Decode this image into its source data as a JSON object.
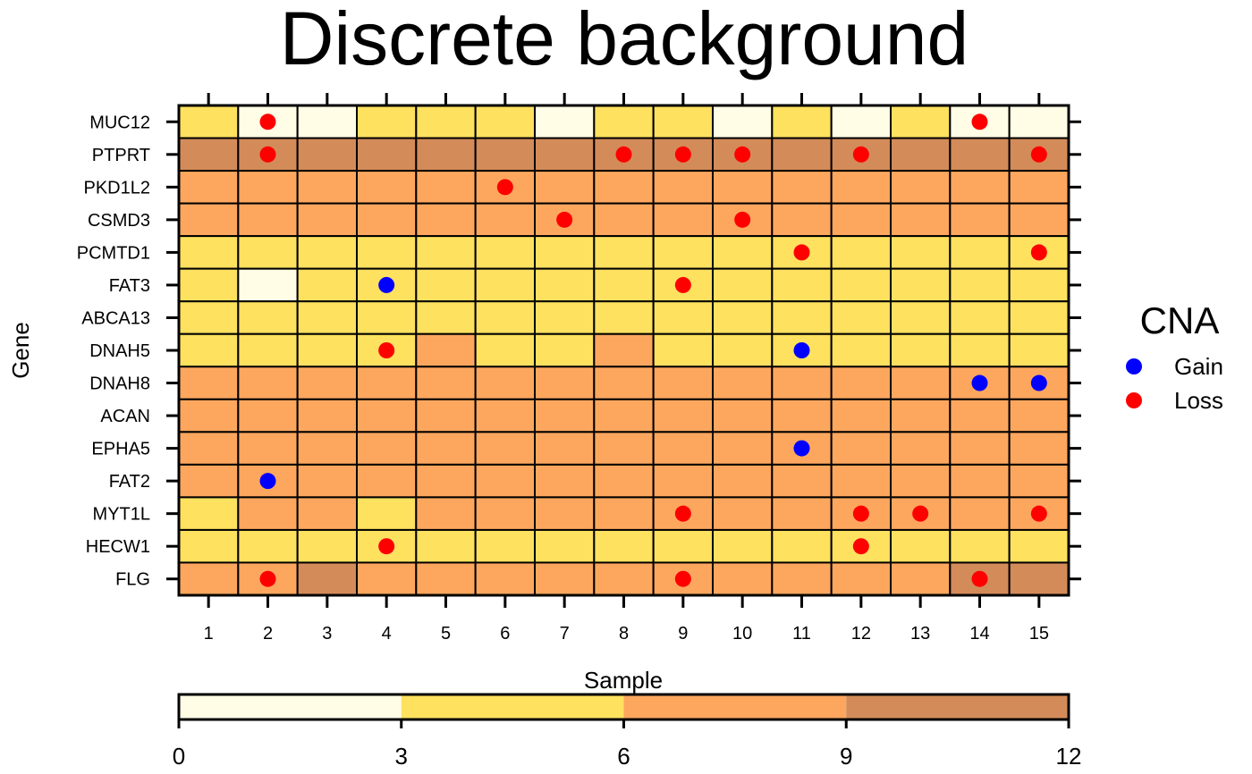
{
  "chart_data": {
    "type": "heatmap",
    "title": "Discrete background",
    "xlabel": "Sample",
    "ylabel": "Gene",
    "x": [
      1,
      2,
      3,
      4,
      5,
      6,
      7,
      8,
      9,
      10,
      11,
      12,
      13,
      14,
      15
    ],
    "genes": [
      "MUC12",
      "PTPRT",
      "PKD1L2",
      "CSMD3",
      "PCMTD1",
      "FAT3",
      "ABCA13",
      "DNAH5",
      "DNAH8",
      "ACAN",
      "EPHA5",
      "FAT2",
      "MYT1L",
      "HECW1",
      "FLG"
    ],
    "level_matrix": [
      [
        1,
        0,
        0,
        1,
        1,
        1,
        0,
        1,
        1,
        0,
        1,
        0,
        1,
        0,
        0
      ],
      [
        3,
        3,
        3,
        3,
        3,
        3,
        3,
        3,
        3,
        3,
        3,
        3,
        3,
        3,
        3
      ],
      [
        2,
        2,
        2,
        2,
        2,
        2,
        2,
        2,
        2,
        2,
        2,
        2,
        2,
        2,
        2
      ],
      [
        2,
        2,
        2,
        2,
        2,
        2,
        2,
        2,
        2,
        2,
        2,
        2,
        2,
        2,
        2
      ],
      [
        1,
        1,
        1,
        1,
        1,
        1,
        1,
        1,
        1,
        1,
        1,
        1,
        1,
        1,
        1
      ],
      [
        1,
        0,
        1,
        1,
        1,
        1,
        1,
        1,
        1,
        1,
        1,
        1,
        1,
        1,
        1
      ],
      [
        1,
        1,
        1,
        1,
        1,
        1,
        1,
        1,
        1,
        1,
        1,
        1,
        1,
        1,
        1
      ],
      [
        1,
        1,
        1,
        1,
        2,
        1,
        1,
        2,
        1,
        1,
        1,
        1,
        1,
        1,
        1
      ],
      [
        2,
        2,
        2,
        2,
        2,
        2,
        2,
        2,
        2,
        2,
        2,
        2,
        2,
        2,
        2
      ],
      [
        2,
        2,
        2,
        2,
        2,
        2,
        2,
        2,
        2,
        2,
        2,
        2,
        2,
        2,
        2
      ],
      [
        2,
        2,
        2,
        2,
        2,
        2,
        2,
        2,
        2,
        2,
        2,
        2,
        2,
        2,
        2
      ],
      [
        2,
        2,
        2,
        2,
        2,
        2,
        2,
        2,
        2,
        2,
        2,
        2,
        2,
        2,
        2
      ],
      [
        1,
        2,
        2,
        1,
        2,
        2,
        2,
        2,
        2,
        2,
        2,
        2,
        2,
        2,
        2
      ],
      [
        1,
        1,
        1,
        1,
        1,
        1,
        1,
        1,
        1,
        1,
        1,
        1,
        1,
        1,
        1
      ],
      [
        2,
        2,
        3,
        2,
        2,
        2,
        2,
        2,
        2,
        2,
        2,
        2,
        2,
        3,
        3
      ]
    ],
    "colorbar": {
      "breaks": [
        0,
        3,
        6,
        9,
        12
      ],
      "colors": [
        "#FFFDE6",
        "#FDE15F",
        "#FDA75E",
        "#D38B59"
      ]
    },
    "legend": {
      "title": "CNA",
      "placement": "right",
      "items": [
        {
          "label": "Gain",
          "color": "#0000FF"
        },
        {
          "label": "Loss",
          "color": "#FF0000"
        }
      ]
    },
    "points": [
      {
        "gene": "MUC12",
        "sample": 2,
        "type": "Loss"
      },
      {
        "gene": "MUC12",
        "sample": 14,
        "type": "Loss"
      },
      {
        "gene": "PTPRT",
        "sample": 2,
        "type": "Loss"
      },
      {
        "gene": "PTPRT",
        "sample": 8,
        "type": "Loss"
      },
      {
        "gene": "PTPRT",
        "sample": 9,
        "type": "Loss"
      },
      {
        "gene": "PTPRT",
        "sample": 10,
        "type": "Loss"
      },
      {
        "gene": "PTPRT",
        "sample": 12,
        "type": "Loss"
      },
      {
        "gene": "PTPRT",
        "sample": 15,
        "type": "Loss"
      },
      {
        "gene": "PKD1L2",
        "sample": 6,
        "type": "Loss"
      },
      {
        "gene": "CSMD3",
        "sample": 7,
        "type": "Loss"
      },
      {
        "gene": "CSMD3",
        "sample": 10,
        "type": "Loss"
      },
      {
        "gene": "PCMTD1",
        "sample": 11,
        "type": "Loss"
      },
      {
        "gene": "PCMTD1",
        "sample": 15,
        "type": "Loss"
      },
      {
        "gene": "FAT3",
        "sample": 4,
        "type": "Gain"
      },
      {
        "gene": "FAT3",
        "sample": 9,
        "type": "Loss"
      },
      {
        "gene": "DNAH5",
        "sample": 4,
        "type": "Loss"
      },
      {
        "gene": "DNAH5",
        "sample": 11,
        "type": "Gain"
      },
      {
        "gene": "DNAH8",
        "sample": 14,
        "type": "Gain"
      },
      {
        "gene": "DNAH8",
        "sample": 15,
        "type": "Gain"
      },
      {
        "gene": "EPHA5",
        "sample": 11,
        "type": "Gain"
      },
      {
        "gene": "FAT2",
        "sample": 2,
        "type": "Gain"
      },
      {
        "gene": "MYT1L",
        "sample": 9,
        "type": "Loss"
      },
      {
        "gene": "MYT1L",
        "sample": 12,
        "type": "Loss"
      },
      {
        "gene": "MYT1L",
        "sample": 13,
        "type": "Loss"
      },
      {
        "gene": "MYT1L",
        "sample": 15,
        "type": "Loss"
      },
      {
        "gene": "HECW1",
        "sample": 4,
        "type": "Loss"
      },
      {
        "gene": "HECW1",
        "sample": 12,
        "type": "Loss"
      },
      {
        "gene": "FLG",
        "sample": 2,
        "type": "Loss"
      },
      {
        "gene": "FLG",
        "sample": 9,
        "type": "Loss"
      },
      {
        "gene": "FLG",
        "sample": 14,
        "type": "Loss"
      }
    ]
  }
}
